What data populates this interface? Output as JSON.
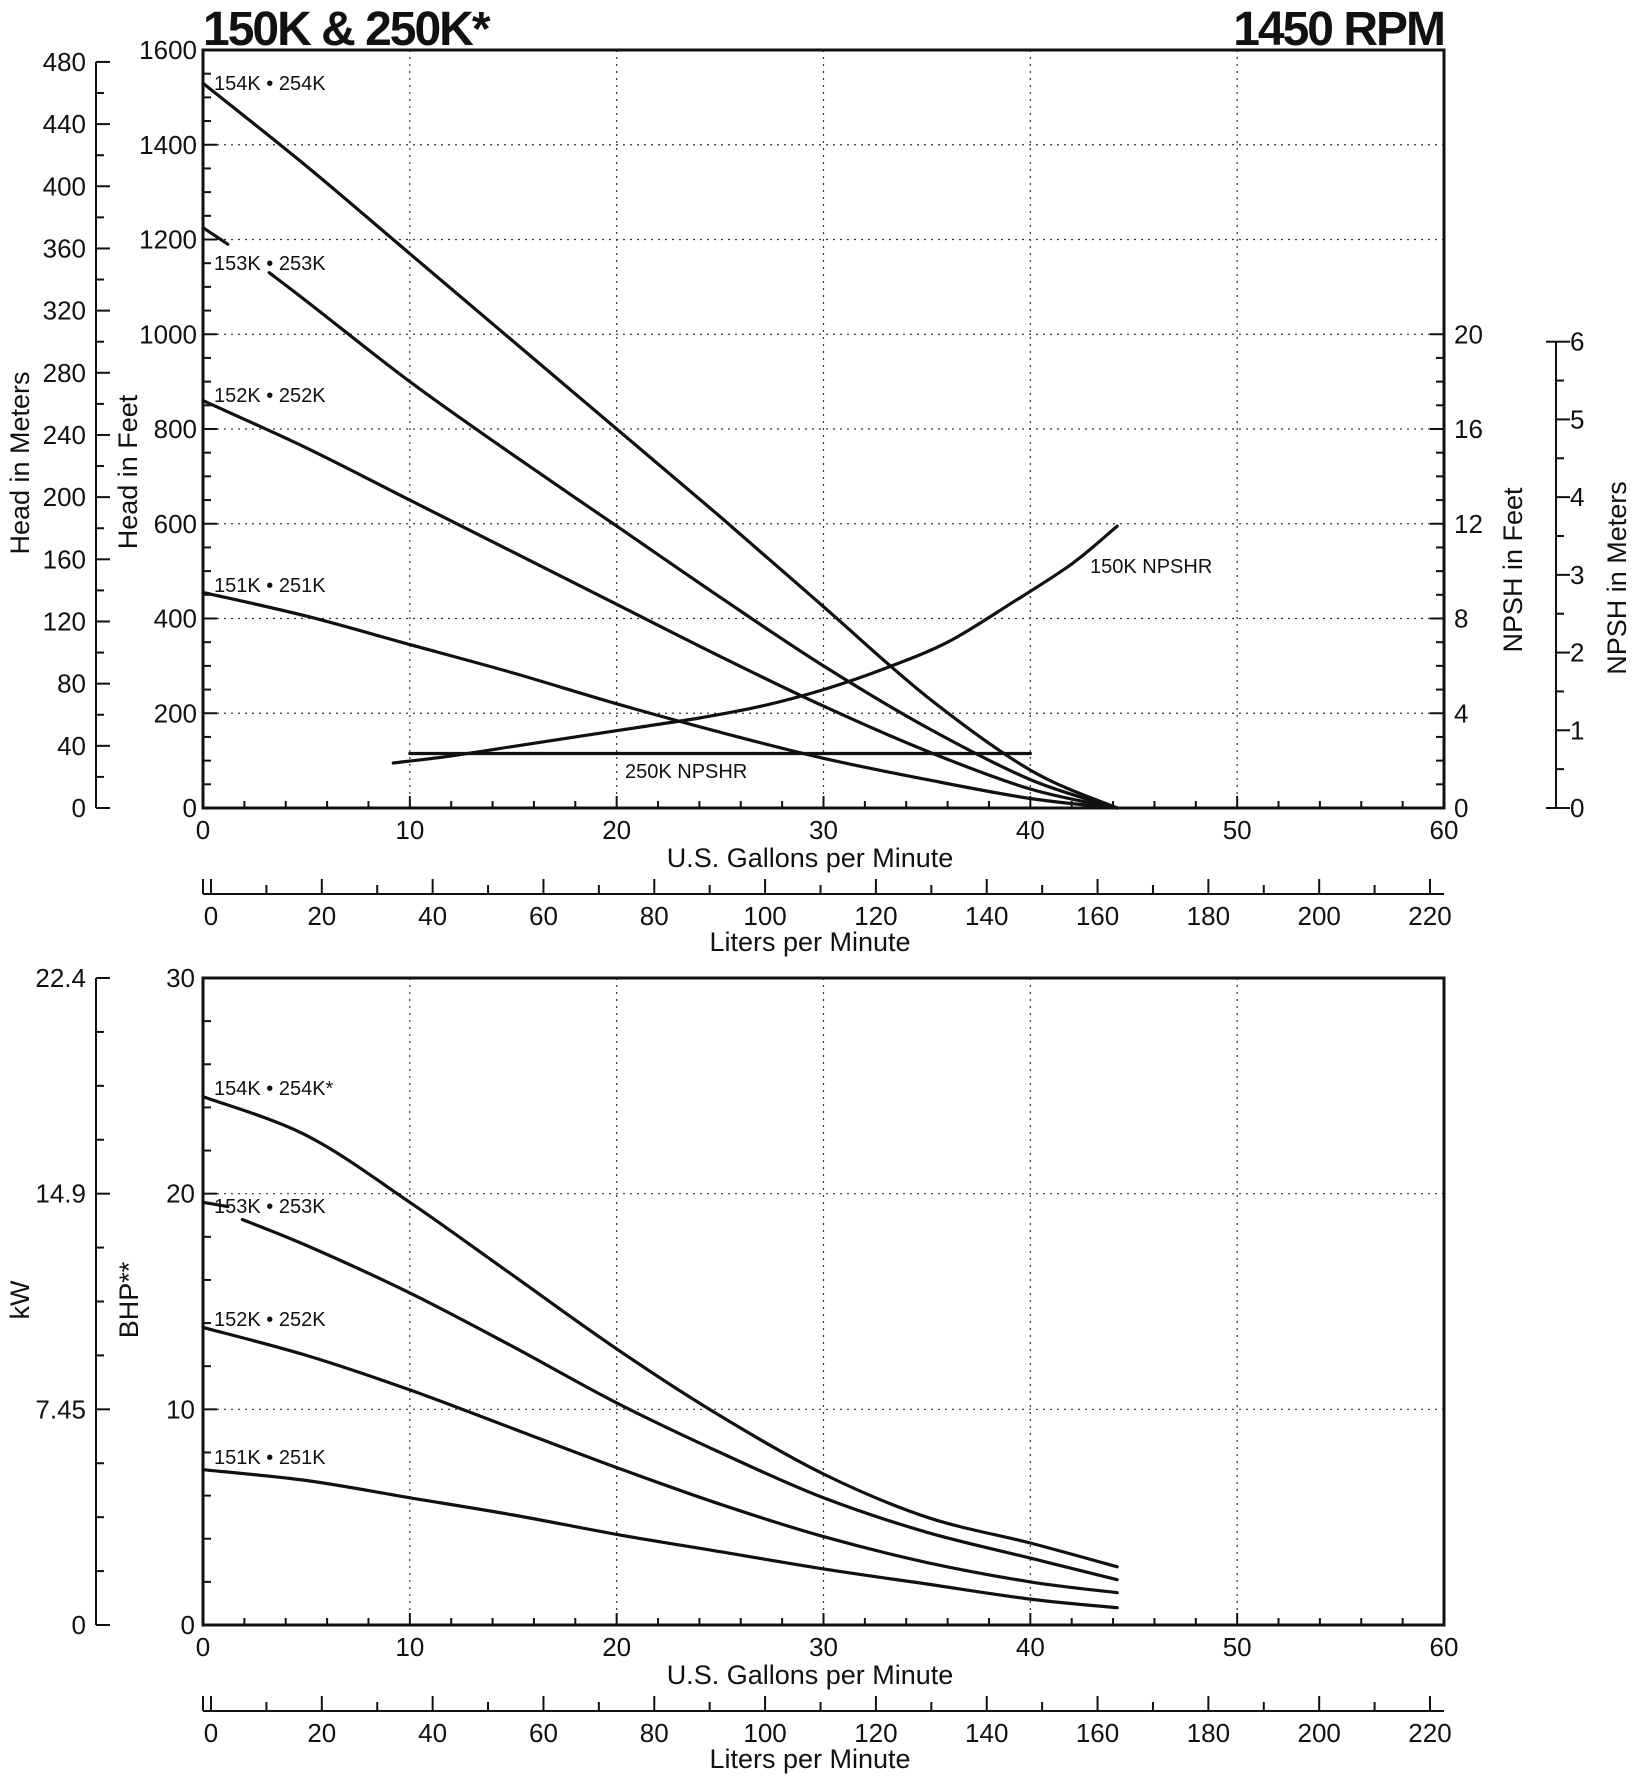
{
  "header": {
    "title_left": "150K & 250K*",
    "title_right": "1450 RPM"
  },
  "colors": {
    "ink": "#111111",
    "background": "#ffffff",
    "grid": "#333333"
  },
  "chart_data": [
    {
      "type": "line",
      "name": "head-capacity",
      "xlabel": "U.S. Gallons per Minute",
      "xlim": [
        0,
        60
      ],
      "xticks": [
        "0",
        "10",
        "20",
        "30",
        "40",
        "50",
        "60"
      ],
      "x2label": "Liters per Minute",
      "x2lim": [
        0,
        227.1
      ],
      "x2ticks": [
        "0",
        "20",
        "40",
        "60",
        "80",
        "100",
        "120",
        "140",
        "160",
        "180",
        "200",
        "220"
      ],
      "ylabel": "Head in Feet",
      "ylim": [
        0,
        1600
      ],
      "yticks": [
        "0",
        "200",
        "400",
        "600",
        "800",
        "1000",
        "1200",
        "1400",
        "1600"
      ],
      "y_meters_label": "Head in Meters",
      "y_meters_ticks": [
        "0",
        "40",
        "80",
        "120",
        "160",
        "200",
        "240",
        "280",
        "320",
        "360",
        "400",
        "440",
        "480"
      ],
      "npsh_feet_label": "NPSH in Feet",
      "npsh_feet_ticks": [
        "0",
        "4",
        "8",
        "12",
        "16",
        "20"
      ],
      "npsh_feet_range": [
        0,
        20
      ],
      "npsh_meters_label": "NPSH in Meters",
      "npsh_meters_ticks": [
        "0",
        "1",
        "2",
        "3",
        "4",
        "5",
        "6"
      ],
      "series": [
        {
          "name": "154K • 254K",
          "x": [
            0,
            5,
            10,
            15,
            20,
            25,
            30,
            35,
            40,
            44.2
          ],
          "y": [
            1530,
            1355,
            1170,
            985,
            800,
            615,
            425,
            235,
            80,
            0
          ]
        },
        {
          "name": "153K • 253K",
          "x": [
            0,
            1.2
          ],
          "y": [
            1225,
            1190
          ]
        },
        {
          "name": "153K • 253K",
          "x": [
            3.2,
            5,
            10,
            15,
            20,
            25,
            30,
            35,
            40,
            44.2
          ],
          "y": [
            1130,
            1070,
            900,
            745,
            595,
            445,
            300,
            170,
            60,
            0
          ]
        },
        {
          "name": "152K • 252K",
          "x": [
            0,
            5,
            10,
            15,
            20,
            25,
            30,
            35,
            40,
            44.2
          ],
          "y": [
            860,
            760,
            650,
            540,
            430,
            320,
            215,
            120,
            40,
            0
          ]
        },
        {
          "name": "151K • 251K",
          "x": [
            0,
            5,
            10,
            15,
            20,
            25,
            30,
            35,
            40,
            44.2
          ],
          "y": [
            455,
            405,
            345,
            285,
            220,
            160,
            105,
            60,
            20,
            0
          ]
        },
        {
          "name": "150K NPSHR",
          "axis": "npsh_feet",
          "x": [
            9.2,
            12,
            15,
            18,
            21,
            24,
            27,
            30,
            33,
            36,
            39,
            42,
            44.2
          ],
          "y": [
            1.9,
            2.2,
            2.6,
            3.0,
            3.4,
            3.8,
            4.3,
            5.0,
            5.9,
            7.0,
            8.6,
            10.3,
            11.9
          ]
        },
        {
          "name": "250K NPSHR",
          "axis": "npsh_feet",
          "x": [
            10,
            40
          ],
          "y": [
            2.3,
            2.3
          ]
        }
      ]
    },
    {
      "type": "line",
      "name": "brake-horsepower",
      "xlabel": "U.S. Gallons per Minute",
      "xlim": [
        0,
        60
      ],
      "xticks": [
        "0",
        "10",
        "20",
        "30",
        "40",
        "50",
        "60"
      ],
      "x2label": "Liters per Minute",
      "x2ticks": [
        "0",
        "20",
        "40",
        "60",
        "80",
        "100",
        "120",
        "140",
        "160",
        "180",
        "200",
        "220"
      ],
      "ylabel": "BHP**",
      "ylim": [
        0,
        30
      ],
      "yticks": [
        "0",
        "10",
        "20",
        "30"
      ],
      "y_kw_label": "kW",
      "y_kw_ticks": [
        "0",
        "7.45",
        "14.9",
        "22.4"
      ],
      "series": [
        {
          "name": "154K • 254K*",
          "x": [
            0,
            5,
            10,
            15,
            20,
            25,
            30,
            35,
            40,
            44.2
          ],
          "y": [
            24.5,
            22.7,
            19.6,
            16.2,
            12.8,
            9.7,
            7.0,
            5.0,
            3.8,
            2.7
          ]
        },
        {
          "name": "153K • 253K",
          "x": [
            0,
            1.2
          ],
          "y": [
            19.6,
            19.4
          ]
        },
        {
          "name": "153K • 253K",
          "x": [
            1.9,
            5,
            10,
            15,
            20,
            25,
            30,
            35,
            40,
            44.2
          ],
          "y": [
            18.8,
            17.6,
            15.4,
            12.9,
            10.3,
            8.0,
            5.9,
            4.3,
            3.1,
            2.1
          ]
        },
        {
          "name": "152K • 252K",
          "x": [
            0,
            5,
            10,
            15,
            20,
            25,
            30,
            35,
            40,
            44.2
          ],
          "y": [
            13.8,
            12.5,
            10.9,
            9.1,
            7.3,
            5.6,
            4.1,
            2.9,
            2.0,
            1.5
          ]
        },
        {
          "name": "151K • 251K",
          "x": [
            0,
            5,
            10,
            15,
            20,
            25,
            30,
            35,
            40,
            44.2
          ],
          "y": [
            7.2,
            6.7,
            5.9,
            5.1,
            4.2,
            3.4,
            2.6,
            1.9,
            1.2,
            0.8
          ]
        }
      ]
    }
  ]
}
